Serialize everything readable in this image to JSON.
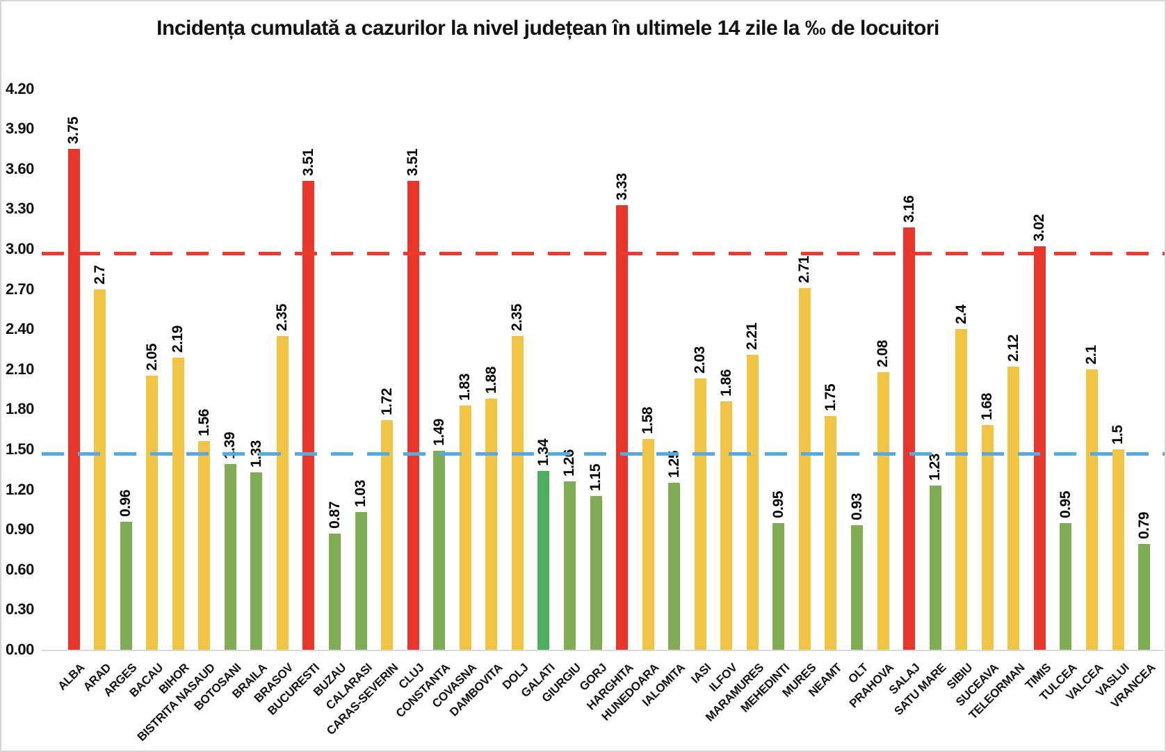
{
  "chart_data": {
    "type": "bar",
    "title": "Incidența cumulată a cazurilor la nivel județean în ultimele 14 zile la ‰ de locuitori",
    "xlabel": "",
    "ylabel": "",
    "grid": false,
    "legend": "none",
    "categories": [
      "ALBA",
      "ARAD",
      "ARGES",
      "BACAU",
      "BIHOR",
      "BISTRITA NASAUD",
      "BOTOSANI",
      "BRAILA",
      "BRASOV",
      "BUCURESTI",
      "BUZAU",
      "CALARASI",
      "CARAS-SEVERIN",
      "CLUJ",
      "CONSTANTA",
      "COVASNA",
      "DAMBOVITA",
      "DOLJ",
      "GALATI",
      "GIURGIU",
      "GORJ",
      "HARGHITA",
      "HUNEDOARA",
      "IALOMITA",
      "IASI",
      "ILFOV",
      "MARAMURES",
      "MEHEDINTI",
      "MURES",
      "NEAMT",
      "OLT",
      "PRAHOVA",
      "SALAJ",
      "SATU MARE",
      "SIBIU",
      "SUCEAVA",
      "TELEORMAN",
      "TIMIS",
      "TULCEA",
      "VALCEA",
      "VASLUI",
      "VRANCEA"
    ],
    "values": [
      3.75,
      2.7,
      0.96,
      2.05,
      2.19,
      1.56,
      1.39,
      1.33,
      2.35,
      3.51,
      0.87,
      1.03,
      1.72,
      3.51,
      1.49,
      1.83,
      1.88,
      2.35,
      1.34,
      1.26,
      1.15,
      3.33,
      1.58,
      1.25,
      2.03,
      1.86,
      2.21,
      0.95,
      2.71,
      1.75,
      0.93,
      2.08,
      3.16,
      1.23,
      2.4,
      1.68,
      2.12,
      3.02,
      0.95,
      2.1,
      1.5,
      0.79
    ],
    "bar_color_keys": [
      "red",
      "yellow",
      "green",
      "yellow",
      "yellow",
      "yellow",
      "green",
      "green",
      "yellow",
      "red",
      "green",
      "green",
      "yellow",
      "red",
      "green",
      "yellow",
      "yellow",
      "yellow",
      "green_alt",
      "green",
      "green",
      "red",
      "yellow",
      "green",
      "yellow",
      "yellow",
      "yellow",
      "green",
      "yellow",
      "yellow",
      "green",
      "yellow",
      "red",
      "green",
      "yellow",
      "yellow",
      "yellow",
      "red",
      "green",
      "yellow",
      "yellow",
      "green"
    ],
    "palette": {
      "red": "#e8372a",
      "yellow": "#f2c446",
      "green": "#80ac54",
      "green_alt": "#4dae60"
    },
    "y_axis": {
      "min": 0,
      "max": 4.2,
      "tick_step": 0.3,
      "tick_labels": [
        "4.20",
        "3.90",
        "3.60",
        "3.30",
        "3.00",
        "2.70",
        "2.40",
        "2.10",
        "1.80",
        "1.50",
        "1.20",
        "0.90",
        "0.60",
        "0.30",
        "0.00"
      ]
    },
    "reference_lines": [
      {
        "name": "red-threshold",
        "value": 3.0,
        "color": "#ee3b2e",
        "style": "dashed"
      },
      {
        "name": "blue-threshold",
        "value": 1.5,
        "color": "#56abe4",
        "style": "dashed"
      }
    ],
    "axis_line_color": "#d9d9d9"
  }
}
